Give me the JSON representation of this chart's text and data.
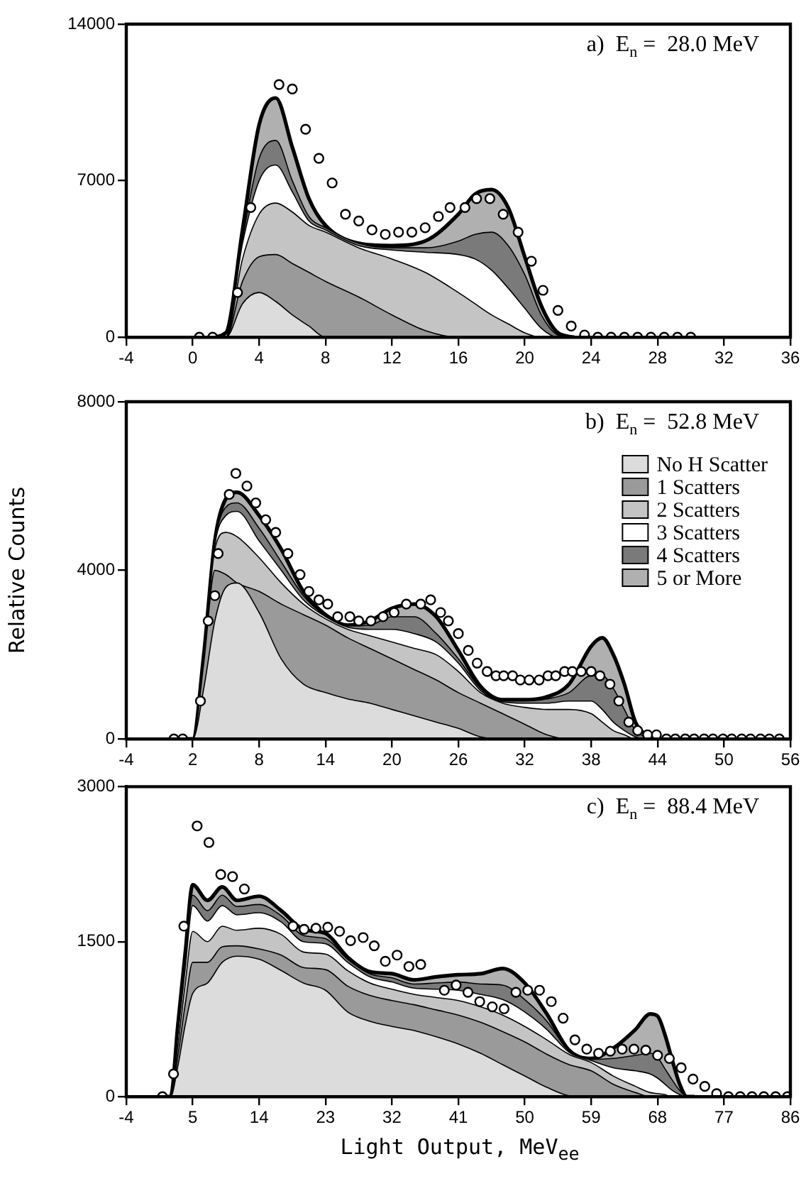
{
  "chart_data": [
    {
      "type": "area",
      "stacked": true,
      "annotations": [
        "a)  E$_{n}$ =  28.0 MeV"
      ],
      "xlim": [
        -4,
        36
      ],
      "xticks": [
        -4,
        0,
        4,
        8,
        12,
        16,
        20,
        24,
        28,
        32,
        36
      ],
      "ylim": [
        0,
        14000
      ],
      "yticks": [
        0,
        7000,
        14000
      ],
      "x": [
        1,
        2,
        3,
        4,
        5,
        6,
        7,
        8,
        10,
        12,
        14,
        16,
        17,
        18,
        19,
        20,
        21,
        22,
        23
      ],
      "series": [
        {
          "color": "#dcdcdc",
          "values": [
            0,
            0,
            1500,
            2000,
            1600,
            1000,
            500,
            0,
            0,
            0,
            0,
            0,
            0,
            0,
            0,
            0,
            0,
            0,
            0
          ]
        },
        {
          "color": "#9a9a9a",
          "values": [
            0,
            0,
            1000,
            1600,
            2100,
            2300,
            2400,
            2500,
            1800,
            1000,
            300,
            0,
            0,
            0,
            0,
            0,
            0,
            0,
            0
          ]
        },
        {
          "color": "#c4c4c4",
          "values": [
            0,
            0,
            1000,
            1900,
            2300,
            2300,
            2100,
            2200,
            2200,
            2500,
            2600,
            2000,
            1500,
            1000,
            600,
            200,
            0,
            0,
            0
          ]
        },
        {
          "color": "#ffffff",
          "values": [
            0,
            0,
            700,
            1500,
            1700,
            900,
            200,
            100,
            100,
            400,
            900,
            1700,
            2000,
            2000,
            1600,
            1100,
            400,
            0,
            0
          ]
        },
        {
          "color": "#7a7a7a",
          "values": [
            0,
            0,
            200,
            1000,
            1100,
            500,
            200,
            100,
            100,
            100,
            200,
            600,
            1100,
            1700,
            1900,
            1500,
            600,
            100,
            0
          ]
        },
        {
          "color": "#b0b0b0",
          "values": [
            0,
            200,
            400,
            1500,
            1900,
            1500,
            800,
            100,
            0,
            100,
            300,
            1200,
            1800,
            1900,
            1700,
            800,
            400,
            100,
            0
          ]
        },
        {
          "type": "scatter",
          "marker": "circle",
          "color": "#000000",
          "x": [
            0.4,
            1.2,
            2.7,
            3.5,
            5.2,
            6.0,
            6.8,
            7.6,
            8.4,
            9.2,
            10.0,
            10.8,
            11.6,
            12.4,
            13.2,
            14.0,
            14.8,
            15.5,
            16.4,
            17.1,
            17.9,
            18.7,
            19.6,
            20.4,
            21.1,
            22.0,
            22.8,
            23.6,
            24.4,
            25.2,
            26.0,
            26.8,
            27.6,
            28.4,
            29.2,
            30.0
          ],
          "values": [
            0,
            0,
            2000,
            5800,
            11300,
            11100,
            9300,
            8000,
            6900,
            5500,
            5200,
            4800,
            4600,
            4700,
            4700,
            4900,
            5400,
            5800,
            5800,
            6200,
            6200,
            5500,
            4700,
            3400,
            2100,
            1200,
            500,
            100,
            0,
            0,
            0,
            0,
            0,
            0,
            0,
            0
          ]
        }
      ]
    },
    {
      "type": "area",
      "stacked": true,
      "ylabel": "Relative Counts",
      "legend": "top right",
      "annotations": [
        "b)  E$_{n}$ =  52.8 MeV"
      ],
      "xlim": [
        -4,
        56
      ],
      "xticks": [
        -4,
        2,
        8,
        14,
        20,
        26,
        32,
        38,
        44,
        50,
        56
      ],
      "ylim": [
        0,
        8000
      ],
      "yticks": [
        0,
        4000,
        8000
      ],
      "x": [
        1,
        2,
        3,
        4,
        5,
        6,
        8,
        10,
        12,
        14,
        16,
        18,
        20,
        22,
        24,
        26,
        28,
        30,
        32,
        34,
        36,
        38,
        39,
        40,
        41,
        42,
        43,
        44
      ],
      "series": [
        {
          "name": "No H Scatter",
          "color": "#dcdcdc",
          "values": [
            0,
            0,
            1200,
            2800,
            3600,
            3700,
            3000,
            1900,
            1300,
            1100,
            950,
            850,
            700,
            550,
            400,
            250,
            50,
            0,
            0,
            0,
            0,
            0,
            0,
            0,
            0,
            0,
            0,
            0
          ]
        },
        {
          "name": "1 Scatters",
          "color": "#9a9a9a",
          "values": [
            0,
            0,
            600,
            1200,
            300,
            0,
            500,
            1300,
            1650,
            1600,
            1450,
            1300,
            1200,
            1100,
            1000,
            850,
            800,
            600,
            350,
            100,
            0,
            0,
            0,
            0,
            0,
            0,
            0,
            0
          ]
        },
        {
          "name": "2 Scatters",
          "color": "#c4c4c4",
          "values": [
            0,
            0,
            100,
            500,
            1000,
            1100,
            800,
            500,
            250,
            150,
            200,
            300,
            400,
            500,
            600,
            500,
            250,
            250,
            400,
            600,
            700,
            600,
            400,
            200,
            100,
            0,
            0,
            0
          ]
        },
        {
          "name": "3 Scatters",
          "color": "#ffffff",
          "values": [
            0,
            0,
            50,
            100,
            400,
            600,
            400,
            300,
            100,
            50,
            50,
            150,
            300,
            350,
            300,
            200,
            50,
            30,
            100,
            150,
            200,
            300,
            300,
            200,
            100,
            50,
            0,
            0
          ]
        },
        {
          "name": "4 Scatters",
          "color": "#7a7a7a",
          "values": [
            0,
            0,
            30,
            50,
            200,
            200,
            300,
            200,
            100,
            20,
            30,
            100,
            300,
            400,
            200,
            100,
            50,
            20,
            50,
            100,
            200,
            600,
            800,
            800,
            500,
            150,
            50,
            0
          ]
        },
        {
          "name": "5 or More",
          "color": "#b0b0b0",
          "values": [
            0,
            0,
            20,
            50,
            200,
            250,
            300,
            300,
            100,
            30,
            20,
            100,
            200,
            300,
            400,
            200,
            50,
            30,
            30,
            50,
            200,
            700,
            900,
            800,
            600,
            200,
            50,
            0
          ]
        },
        {
          "type": "scatter",
          "marker": "circle",
          "color": "#000000",
          "x": [
            0.3,
            1.1,
            2.7,
            3.4,
            4.0,
            4.3,
            5.3,
            5.9,
            6.9,
            7.7,
            8.6,
            9.5,
            10.6,
            11.7,
            12.5,
            13.4,
            14.2,
            15.1,
            16.2,
            17.0,
            18.1,
            19.2,
            20.2,
            21.3,
            22.6,
            23.5,
            24.4,
            25.1,
            26.0,
            26.9,
            27.7,
            28.6,
            29.4,
            30.1,
            30.9,
            31.6,
            32.4,
            33.3,
            34.1,
            34.8,
            35.6,
            36.3,
            37.1,
            38.0,
            38.8,
            39.7,
            40.5,
            41.4,
            42.2,
            43.1,
            43.9,
            44.8,
            45.6,
            46.5,
            47.3,
            48.2,
            49.0,
            49.9,
            50.7,
            51.6,
            52.4,
            53.3,
            54.1,
            55.0
          ],
          "values": [
            0,
            0,
            900,
            2800,
            3400,
            4400,
            5800,
            6300,
            6000,
            5600,
            5200,
            4900,
            4400,
            3900,
            3500,
            3300,
            3200,
            2900,
            2900,
            2800,
            2800,
            2900,
            3000,
            3200,
            3200,
            3300,
            3000,
            2800,
            2500,
            2100,
            1800,
            1600,
            1500,
            1500,
            1500,
            1400,
            1400,
            1400,
            1500,
            1500,
            1600,
            1600,
            1600,
            1600,
            1500,
            1300,
            900,
            400,
            200,
            100,
            100,
            0,
            0,
            0,
            0,
            0,
            0,
            0,
            0,
            0,
            0,
            0,
            0,
            0
          ]
        }
      ]
    },
    {
      "type": "area",
      "stacked": true,
      "xlabel": "Light Output, MeV$_{ee}$",
      "annotations": [
        "c)  E$_{n}$ =  88.4 MeV"
      ],
      "xlim": [
        -4,
        86
      ],
      "xticks": [
        -4,
        5,
        14,
        23,
        32,
        41,
        50,
        59,
        68,
        77,
        86
      ],
      "ylim": [
        0,
        3000
      ],
      "yticks": [
        0,
        1500,
        3000
      ],
      "x": [
        1,
        2,
        3,
        4,
        5,
        7,
        9,
        11,
        14,
        17,
        20,
        23,
        26,
        29,
        32,
        35,
        38,
        41,
        44,
        47,
        50,
        53,
        56,
        59,
        62,
        65,
        67,
        68,
        69,
        70,
        71,
        72,
        73
      ],
      "series": [
        {
          "color": "#dcdcdc",
          "values": [
            0,
            0,
            300,
            700,
            1000,
            1100,
            1300,
            1360,
            1330,
            1220,
            1100,
            1030,
            820,
            730,
            680,
            640,
            580,
            510,
            420,
            310,
            200,
            90,
            10,
            0,
            0,
            0,
            0,
            0,
            0,
            0,
            0,
            0,
            0
          ]
        },
        {
          "color": "#9a9a9a",
          "values": [
            0,
            0,
            100,
            200,
            300,
            200,
            150,
            100,
            100,
            150,
            150,
            200,
            250,
            250,
            250,
            250,
            260,
            280,
            300,
            320,
            330,
            320,
            300,
            250,
            120,
            40,
            0,
            0,
            0,
            0,
            0,
            0,
            0
          ]
        },
        {
          "color": "#c4c4c4",
          "values": [
            0,
            0,
            100,
            200,
            300,
            200,
            200,
            150,
            200,
            200,
            150,
            150,
            150,
            120,
            110,
            100,
            120,
            140,
            150,
            160,
            150,
            140,
            100,
            80,
            80,
            60,
            40,
            30,
            20,
            0,
            0,
            0,
            0
          ]
        },
        {
          "color": "#ffffff",
          "values": [
            0,
            0,
            100,
            150,
            250,
            200,
            200,
            150,
            150,
            120,
            100,
            100,
            80,
            60,
            70,
            60,
            80,
            100,
            120,
            150,
            140,
            100,
            20,
            20,
            80,
            150,
            180,
            150,
            100,
            60,
            20,
            0,
            0
          ]
        },
        {
          "color": "#7a7a7a",
          "values": [
            0,
            0,
            50,
            100,
            100,
            100,
            100,
            80,
            80,
            60,
            60,
            50,
            30,
            30,
            40,
            40,
            60,
            80,
            100,
            140,
            120,
            80,
            10,
            10,
            90,
            150,
            200,
            200,
            150,
            100,
            40,
            0,
            0
          ]
        },
        {
          "color": "#b0b0b0",
          "values": [
            0,
            0,
            50,
            50,
            100,
            100,
            80,
            60,
            80,
            50,
            60,
            50,
            20,
            20,
            40,
            40,
            60,
            70,
            100,
            160,
            160,
            70,
            10,
            10,
            100,
            250,
            380,
            400,
            330,
            190,
            60,
            0,
            0
          ]
        },
        {
          "type": "scatter",
          "marker": "circle",
          "color": "#000000",
          "x": [
            0.9,
            2.4,
            3.8,
            5.6,
            7.2,
            8.8,
            10.4,
            12.0,
            18.6,
            20.1,
            21.7,
            23.3,
            24.9,
            26.4,
            28.1,
            29.6,
            31.1,
            32.7,
            34.3,
            35.9,
            39.1,
            40.7,
            42.3,
            43.9,
            45.6,
            47.2,
            48.8,
            50.4,
            52.0,
            53.6,
            55.2,
            56.8,
            58.4,
            60.0,
            61.6,
            63.2,
            64.8,
            66.4,
            68.0,
            69.6,
            71.2,
            72.8,
            74.4,
            76.0,
            77.6,
            79.2,
            80.8,
            82.4,
            84.0,
            85.6
          ],
          "values": [
            0,
            220,
            1650,
            2620,
            2460,
            2150,
            2130,
            2010,
            1650,
            1620,
            1630,
            1640,
            1600,
            1510,
            1540,
            1460,
            1310,
            1370,
            1260,
            1280,
            1030,
            1080,
            1010,
            920,
            870,
            850,
            1010,
            1030,
            1030,
            920,
            760,
            550,
            460,
            420,
            440,
            460,
            460,
            450,
            400,
            370,
            280,
            170,
            100,
            30,
            0,
            0,
            0,
            0,
            0,
            0
          ]
        }
      ]
    }
  ]
}
